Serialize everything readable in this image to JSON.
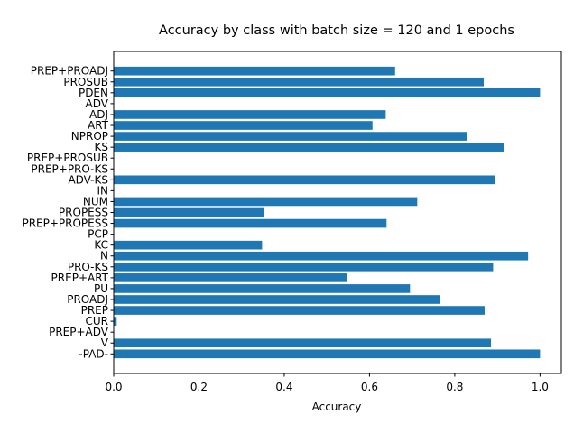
{
  "chart_data": {
    "type": "bar",
    "orientation": "horizontal",
    "title": "Accuracy by class with batch size = 120 and 1 epochs",
    "xlabel": "Accuracy",
    "ylabel": "",
    "xlim": [
      0.0,
      1.05
    ],
    "xticks": [
      "0.0",
      "0.2",
      "0.4",
      "0.6",
      "0.8",
      "1.0"
    ],
    "grid": false,
    "bar_color": "#1f77b4",
    "categories": [
      "-PAD-",
      "V",
      "PREP+ADV",
      "CUR",
      "PREP",
      "PROADJ",
      "PU",
      "PREP+ART",
      "PRO-KS",
      "N",
      "KC",
      "PCP",
      "PREP+PROPESS",
      "PROPESS",
      "NUM",
      "IN",
      "ADV-KS",
      "PREP+PRO-KS",
      "PREP+PROSUB",
      "KS",
      "NPROP",
      "ART",
      "ADJ",
      "ADV",
      "PDEN",
      "PROSUB",
      "PREP+PROADJ"
    ],
    "values": [
      1.0,
      0.885,
      0.0,
      0.007,
      0.87,
      0.765,
      0.695,
      0.547,
      0.89,
      0.972,
      0.348,
      0.0,
      0.64,
      0.352,
      0.712,
      0.0,
      0.895,
      0.0,
      0.0,
      0.915,
      0.828,
      0.607,
      0.638,
      0.0,
      1.0,
      0.868,
      0.66
    ]
  }
}
